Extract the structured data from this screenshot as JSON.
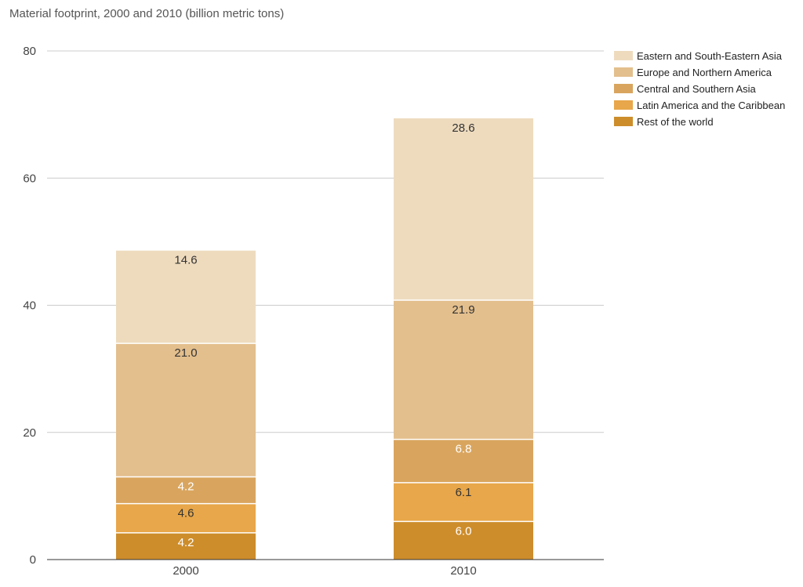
{
  "chart_data": {
    "type": "bar",
    "stacked": true,
    "title": "Material footprint, 2000 and 2010 (billion metric tons)",
    "xlabel": "",
    "ylabel": "",
    "categories": [
      "2000",
      "2010"
    ],
    "ylim": [
      0,
      80
    ],
    "yticks": [
      0,
      20,
      40,
      60,
      80
    ],
    "grid": true,
    "legend_position": "top-right",
    "series": [
      {
        "name": "Rest of the world",
        "values": [
          4.2,
          6.0
        ],
        "labels": [
          "4.2",
          "6.0"
        ],
        "color": "#CD8D2B",
        "label_color": "#ffffff"
      },
      {
        "name": "Latin America and the Caribbean",
        "values": [
          4.6,
          6.1
        ],
        "labels": [
          "4.6",
          "6.1"
        ],
        "color": "#E8A74A",
        "label_color": "#333333"
      },
      {
        "name": "Central and Southern Asia",
        "values": [
          4.2,
          6.8
        ],
        "labels": [
          "4.2",
          "6.8"
        ],
        "color": "#D9A55E",
        "label_color": "#ffffff"
      },
      {
        "name": "Europe and Northern America",
        "values": [
          21.0,
          21.9
        ],
        "labels": [
          "21.0",
          "21.9"
        ],
        "color": "#E3BF8D",
        "label_color": "#333333"
      },
      {
        "name": "Eastern and South-Eastern Asia",
        "values": [
          14.6,
          28.6
        ],
        "labels": [
          "14.6",
          "28.6"
        ],
        "color": "#EEDBBE",
        "label_color": "#333333"
      }
    ],
    "legend_order": [
      4,
      3,
      2,
      1,
      0
    ]
  }
}
